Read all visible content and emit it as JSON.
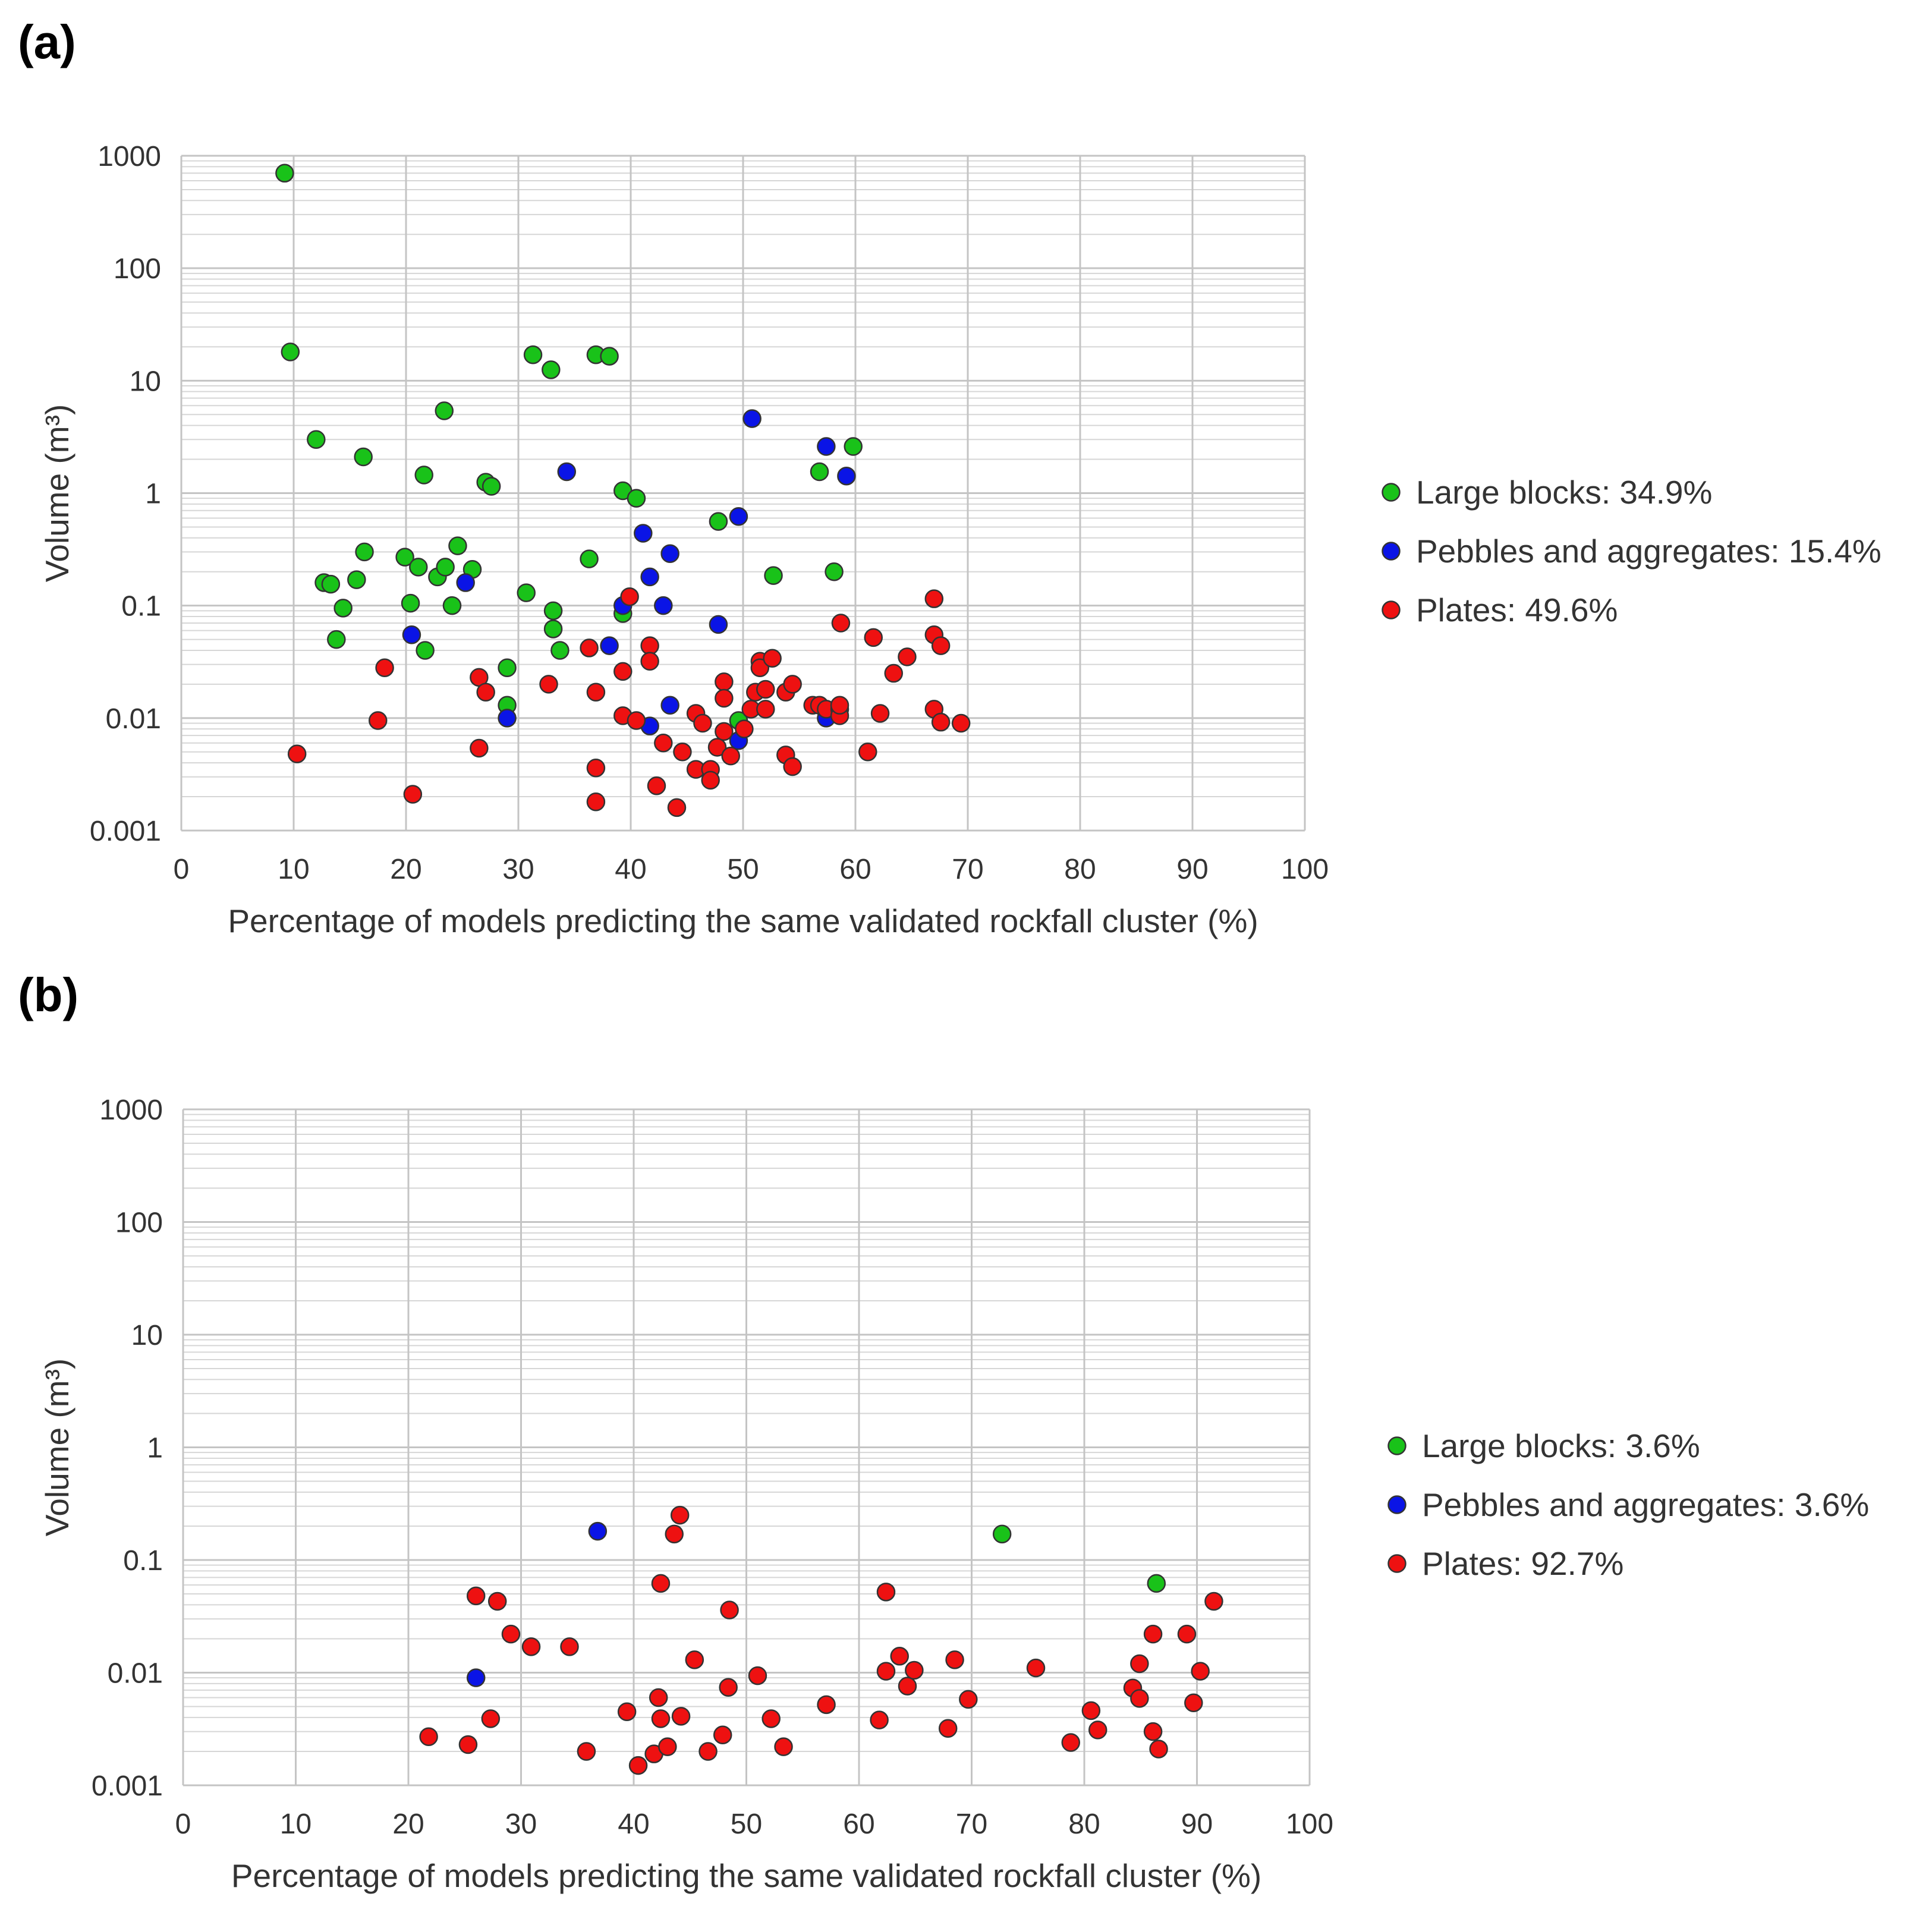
{
  "colors": {
    "large_blocks": "#19c219",
    "pebbles": "#0a14e6",
    "plates": "#ee1111",
    "grid_major": "#c4c4c4",
    "grid_minor": "#d6d6d6",
    "marker_edge": "#333333",
    "text": "#333333"
  },
  "chart_data": [
    {
      "panel": "(a)",
      "type": "scatter",
      "xlabel": "Percentage of models predicting the same validated rockfall cluster (%)",
      "ylabel": "Volume (m³)",
      "xlim": [
        0,
        100
      ],
      "ylim": [
        0.001,
        1000
      ],
      "yscale": "log",
      "xticks": [
        "0",
        "10",
        "20",
        "30",
        "40",
        "50",
        "60",
        "70",
        "80",
        "90",
        "100"
      ],
      "yticks": [
        "0.001",
        "0.01",
        "0.1",
        "1",
        "10",
        "100",
        "1000"
      ],
      "grid": true,
      "legend_position": "right",
      "series": [
        {
          "name": "Large blocks: 34.9%",
          "color_key": "large_blocks",
          "points": [
            [
              9.2,
              700
            ],
            [
              9.7,
              18
            ],
            [
              12,
              3
            ],
            [
              12.7,
              0.16
            ],
            [
              13.3,
              0.155
            ],
            [
              13.8,
              0.05
            ],
            [
              14.4,
              0.095
            ],
            [
              15.6,
              0.17
            ],
            [
              16.2,
              2.1
            ],
            [
              16.3,
              0.3
            ],
            [
              19.9,
              0.27
            ],
            [
              20.4,
              0.105
            ],
            [
              21.1,
              0.22
            ],
            [
              21.6,
              1.45
            ],
            [
              21.7,
              0.04
            ],
            [
              22.8,
              0.18
            ],
            [
              23.4,
              5.4
            ],
            [
              23.5,
              0.22
            ],
            [
              24.1,
              0.1
            ],
            [
              24.6,
              0.34
            ],
            [
              25.9,
              0.21
            ],
            [
              27.1,
              1.25
            ],
            [
              27.6,
              1.15
            ],
            [
              29,
              0.028
            ],
            [
              29,
              0.013
            ],
            [
              30.7,
              0.13
            ],
            [
              31.3,
              17
            ],
            [
              32.9,
              12.5
            ],
            [
              33.1,
              0.09
            ],
            [
              33.1,
              0.062
            ],
            [
              33.7,
              0.04
            ],
            [
              36.3,
              0.26
            ],
            [
              36.9,
              17
            ],
            [
              38.1,
              16.5
            ],
            [
              39.3,
              1.05
            ],
            [
              39.3,
              0.085
            ],
            [
              40.5,
              0.9
            ],
            [
              47.8,
              0.56
            ],
            [
              49.6,
              0.0095
            ],
            [
              52.7,
              0.185
            ],
            [
              56.8,
              1.55
            ],
            [
              58.1,
              0.2
            ],
            [
              59.8,
              2.6
            ]
          ]
        },
        {
          "name": "Pebbles and aggregates: 15.4%",
          "color_key": "pebbles",
          "points": [
            [
              20.5,
              0.055
            ],
            [
              25.3,
              0.16
            ],
            [
              29,
              0.01
            ],
            [
              34.3,
              1.55
            ],
            [
              38.1,
              0.044
            ],
            [
              39.3,
              0.1
            ],
            [
              41.1,
              0.44
            ],
            [
              41.7,
              0.18
            ],
            [
              41.7,
              0.0085
            ],
            [
              42.9,
              0.1
            ],
            [
              43.5,
              0.29
            ],
            [
              43.5,
              0.013
            ],
            [
              47.8,
              0.068
            ],
            [
              49.6,
              0.62
            ],
            [
              49.6,
              0.0063
            ],
            [
              50.8,
              4.6
            ],
            [
              57.4,
              2.6
            ],
            [
              57.4,
              0.01
            ],
            [
              59.2,
              1.42
            ]
          ]
        },
        {
          "name": "Plates: 49.6%",
          "color_key": "plates",
          "points": [
            [
              10.3,
              0.0048
            ],
            [
              17.5,
              0.0095
            ],
            [
              18.1,
              0.028
            ],
            [
              20.6,
              0.0021
            ],
            [
              26.5,
              0.023
            ],
            [
              26.5,
              0.0054
            ],
            [
              27.1,
              0.017
            ],
            [
              32.7,
              0.02
            ],
            [
              36.3,
              0.042
            ],
            [
              36.9,
              0.0036
            ],
            [
              36.9,
              0.0018
            ],
            [
              36.9,
              0.017
            ],
            [
              39.3,
              0.026
            ],
            [
              39.3,
              0.0105
            ],
            [
              39.9,
              0.12
            ],
            [
              40.5,
              0.0095
            ],
            [
              41.7,
              0.044
            ],
            [
              41.7,
              0.032
            ],
            [
              42.3,
              0.0025
            ],
            [
              42.9,
              0.006
            ],
            [
              44.1,
              0.0016
            ],
            [
              44.6,
              0.005
            ],
            [
              45.8,
              0.011
            ],
            [
              45.8,
              0.0035
            ],
            [
              46.4,
              0.009
            ],
            [
              47.1,
              0.0035
            ],
            [
              47.1,
              0.0028
            ],
            [
              47.7,
              0.0055
            ],
            [
              48.3,
              0.021
            ],
            [
              48.3,
              0.015
            ],
            [
              48.3,
              0.0076
            ],
            [
              48.9,
              0.0046
            ],
            [
              50.1,
              0.008
            ],
            [
              50.7,
              0.012
            ],
            [
              51.1,
              0.017
            ],
            [
              51.5,
              0.032
            ],
            [
              51.5,
              0.028
            ],
            [
              52,
              0.018
            ],
            [
              52,
              0.012
            ],
            [
              52.6,
              0.034
            ],
            [
              53.8,
              0.017
            ],
            [
              53.8,
              0.0047
            ],
            [
              54.4,
              0.02
            ],
            [
              54.4,
              0.0037
            ],
            [
              56.2,
              0.013
            ],
            [
              56.8,
              0.013
            ],
            [
              57.4,
              0.012
            ],
            [
              58.6,
              0.012
            ],
            [
              58.6,
              0.0105
            ],
            [
              58.6,
              0.013
            ],
            [
              58.7,
              0.07
            ],
            [
              61.1,
              0.005
            ],
            [
              61.6,
              0.052
            ],
            [
              62.2,
              0.011
            ],
            [
              63.4,
              0.025
            ],
            [
              64.6,
              0.035
            ],
            [
              67,
              0.115
            ],
            [
              67,
              0.055
            ],
            [
              67,
              0.012
            ],
            [
              67.6,
              0.044
            ],
            [
              67.6,
              0.0092
            ],
            [
              69.4,
              0.009
            ]
          ]
        }
      ]
    },
    {
      "panel": "(b)",
      "type": "scatter",
      "xlabel": "Percentage of models predicting the same validated rockfall cluster (%)",
      "ylabel": "Volume (m³)",
      "xlim": [
        0,
        100
      ],
      "ylim": [
        0.001,
        1000
      ],
      "yscale": "log",
      "xticks": [
        "0",
        "10",
        "20",
        "30",
        "40",
        "50",
        "60",
        "70",
        "80",
        "90",
        "100"
      ],
      "yticks": [
        "0.001",
        "0.01",
        "0.1",
        "1",
        "10",
        "100",
        "1000"
      ],
      "grid": true,
      "legend_position": "right",
      "series": [
        {
          "name": "Large blocks: 3.6%",
          "color_key": "large_blocks",
          "points": [
            [
              72.7,
              0.17
            ],
            [
              86.4,
              0.062
            ]
          ]
        },
        {
          "name": "Pebbles and aggregates: 3.6%",
          "color_key": "pebbles",
          "points": [
            [
              36.8,
              0.18
            ],
            [
              26,
              0.009
            ]
          ]
        },
        {
          "name": "Plates: 92.7%",
          "color_key": "plates",
          "points": [
            [
              21.8,
              0.0027
            ],
            [
              25.3,
              0.0023
            ],
            [
              26,
              0.048
            ],
            [
              27.3,
              0.0039
            ],
            [
              27.9,
              0.043
            ],
            [
              29.1,
              0.022
            ],
            [
              30.9,
              0.017
            ],
            [
              34.3,
              0.017
            ],
            [
              35.8,
              0.002
            ],
            [
              39.4,
              0.0045
            ],
            [
              40.4,
              0.0015
            ],
            [
              41.8,
              0.0019
            ],
            [
              42.2,
              0.006
            ],
            [
              42.4,
              0.0039
            ],
            [
              42.4,
              0.062
            ],
            [
              43,
              0.0022
            ],
            [
              43.6,
              0.17
            ],
            [
              44.1,
              0.25
            ],
            [
              44.2,
              0.0041
            ],
            [
              45.4,
              0.013
            ],
            [
              46.6,
              0.002
            ],
            [
              47.9,
              0.0028
            ],
            [
              48.4,
              0.0074
            ],
            [
              48.5,
              0.036
            ],
            [
              51,
              0.0094
            ],
            [
              52.2,
              0.0039
            ],
            [
              53.3,
              0.0022
            ],
            [
              57.1,
              0.0052
            ],
            [
              61.8,
              0.0038
            ],
            [
              62.4,
              0.052
            ],
            [
              62.4,
              0.0103
            ],
            [
              63.6,
              0.014
            ],
            [
              64.3,
              0.0076
            ],
            [
              64.9,
              0.0105
            ],
            [
              67.9,
              0.0032
            ],
            [
              68.5,
              0.013
            ],
            [
              69.7,
              0.0058
            ],
            [
              75.7,
              0.011
            ],
            [
              78.8,
              0.0024
            ],
            [
              80.6,
              0.0046
            ],
            [
              81.2,
              0.0031
            ],
            [
              84.3,
              0.0073
            ],
            [
              84.9,
              0.012
            ],
            [
              84.9,
              0.0059
            ],
            [
              86.1,
              0.022
            ],
            [
              86.1,
              0.003
            ],
            [
              86.6,
              0.0021
            ],
            [
              89.1,
              0.022
            ],
            [
              89.7,
              0.0054
            ],
            [
              90.3,
              0.0103
            ],
            [
              91.5,
              0.043
            ]
          ]
        }
      ]
    }
  ]
}
